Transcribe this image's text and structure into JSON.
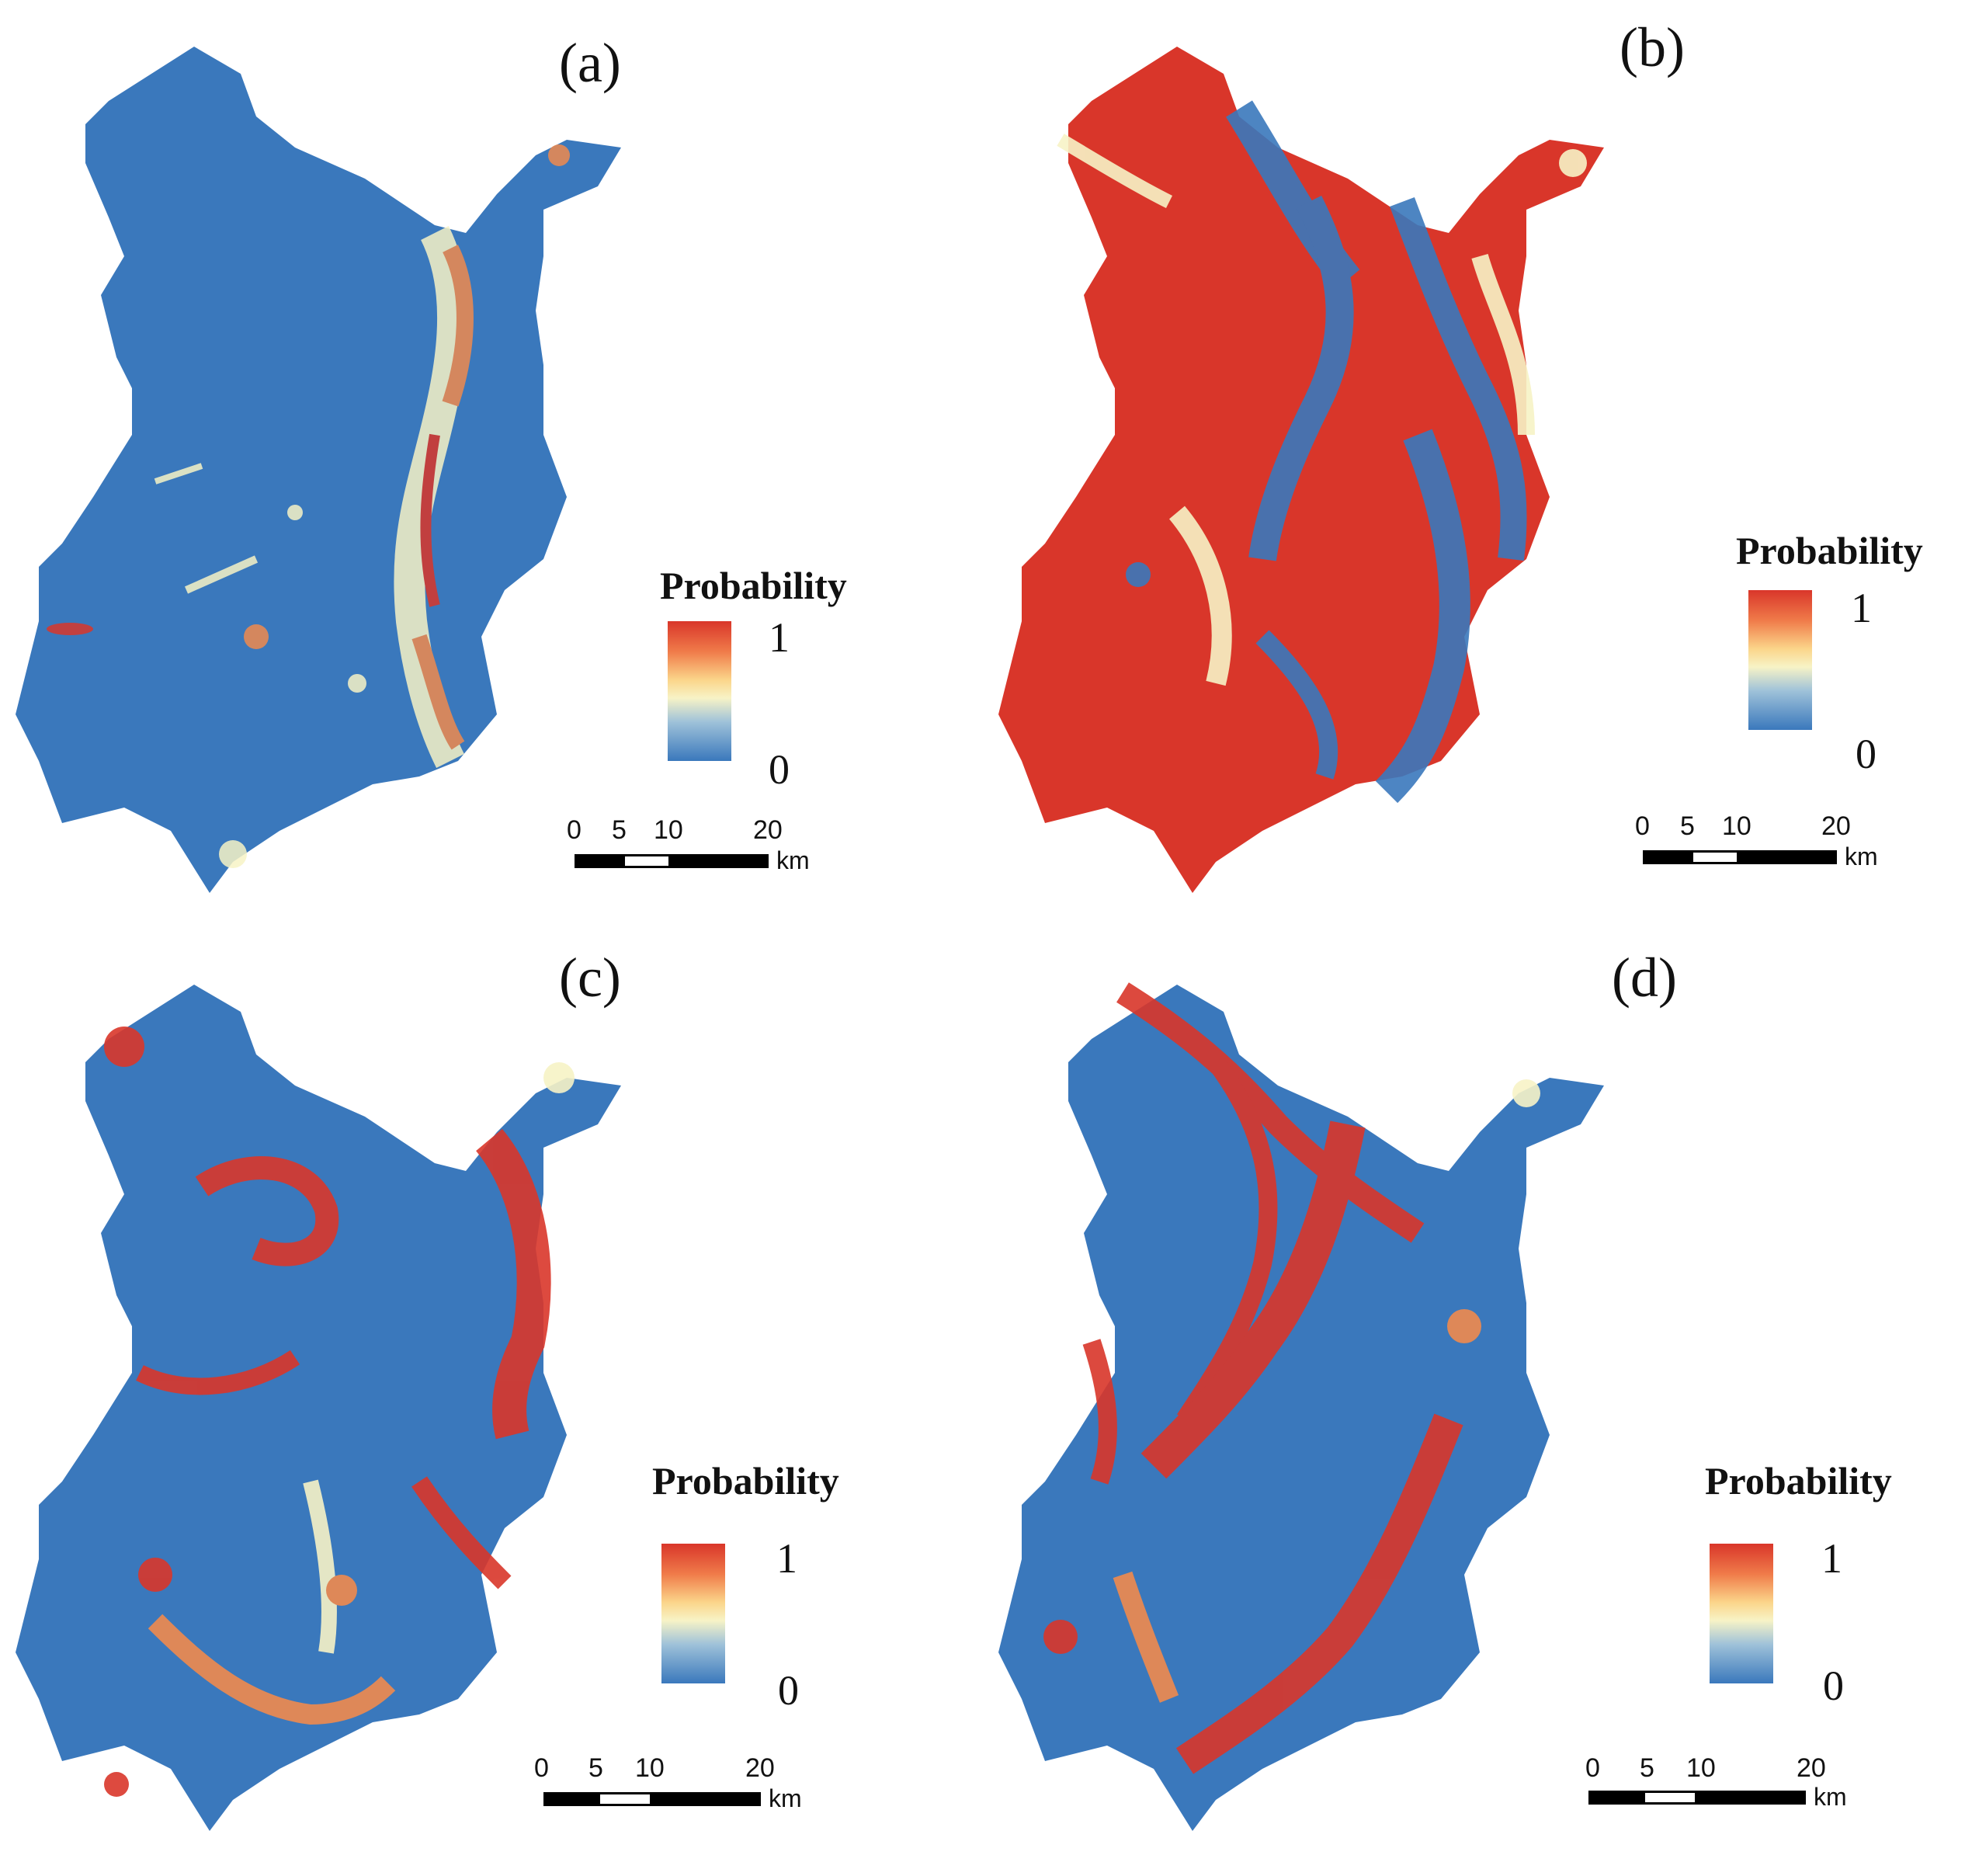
{
  "panels": [
    {
      "label": "(a)",
      "legend_title": "Probability",
      "legend_max": "1",
      "legend_min": "0",
      "scale_ticks": [
        "0",
        "5",
        "10",
        "20"
      ],
      "scale_unit": "km",
      "dominant": "low"
    },
    {
      "label": "(b)",
      "legend_title": "Probability",
      "legend_max": "1",
      "legend_min": "0",
      "scale_ticks": [
        "0",
        "5",
        "10",
        "20"
      ],
      "scale_unit": "km",
      "dominant": "high"
    },
    {
      "label": "(c)",
      "legend_title": "Probability",
      "legend_max": "1",
      "legend_min": "0",
      "scale_ticks": [
        "0",
        "5",
        "10",
        "20"
      ],
      "scale_unit": "km",
      "dominant": "low"
    },
    {
      "label": "(d)",
      "legend_title": "Probability",
      "legend_max": "1",
      "legend_min": "0",
      "scale_ticks": [
        "0",
        "5",
        "10",
        "20"
      ],
      "scale_unit": "km",
      "dominant": "low"
    }
  ],
  "colors": {
    "low": "#3a78bc",
    "mid": "#f7f3c6",
    "high": "#d9362a",
    "orange": "#f08a4e"
  }
}
